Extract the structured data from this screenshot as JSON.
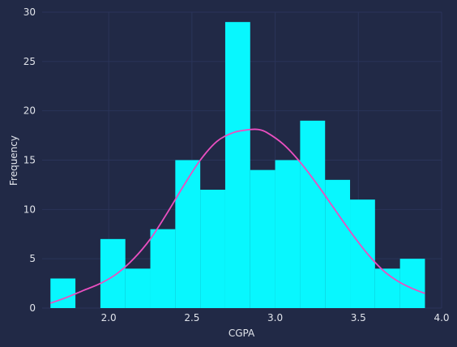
{
  "chart_data": {
    "type": "bar",
    "subtype": "histogram",
    "xlabel": "CGPA",
    "ylabel": "Frequency",
    "xlim": [
      1.6,
      4.0
    ],
    "ylim": [
      0,
      30
    ],
    "grid": true,
    "x_ticks": [
      "2.0",
      "2.5",
      "3.0",
      "3.5",
      "4.0"
    ],
    "x_tick_values": [
      2.0,
      2.5,
      3.0,
      3.5,
      4.0
    ],
    "y_ticks": [
      "0",
      "5",
      "10",
      "15",
      "20",
      "25",
      "30"
    ],
    "y_tick_values": [
      0,
      5,
      10,
      15,
      20,
      25,
      30
    ],
    "bins": [
      {
        "x0": 1.65,
        "x1": 1.8,
        "value": 3
      },
      {
        "x0": 1.8,
        "x1": 1.95,
        "value": 0
      },
      {
        "x0": 1.95,
        "x1": 2.1,
        "value": 7
      },
      {
        "x0": 2.1,
        "x1": 2.25,
        "value": 4
      },
      {
        "x0": 2.25,
        "x1": 2.4,
        "value": 8
      },
      {
        "x0": 2.4,
        "x1": 2.55,
        "value": 15
      },
      {
        "x0": 2.55,
        "x1": 2.7,
        "value": 12
      },
      {
        "x0": 2.7,
        "x1": 2.85,
        "value": 29
      },
      {
        "x0": 2.85,
        "x1": 3.0,
        "value": 14
      },
      {
        "x0": 3.0,
        "x1": 3.15,
        "value": 15
      },
      {
        "x0": 3.15,
        "x1": 3.3,
        "value": 19
      },
      {
        "x0": 3.3,
        "x1": 3.45,
        "value": 13
      },
      {
        "x0": 3.45,
        "x1": 3.6,
        "value": 11
      },
      {
        "x0": 3.6,
        "x1": 3.75,
        "value": 4
      },
      {
        "x0": 3.75,
        "x1": 3.9,
        "value": 5
      }
    ],
    "kde_curve": {
      "x": [
        1.65,
        1.75,
        1.85,
        1.95,
        2.05,
        2.15,
        2.25,
        2.35,
        2.45,
        2.55,
        2.65,
        2.75,
        2.85,
        2.9,
        2.95,
        3.05,
        3.15,
        3.25,
        3.35,
        3.45,
        3.55,
        3.65,
        3.75,
        3.85,
        3.9
      ],
      "y": [
        0.5,
        1.1,
        1.8,
        2.5,
        3.5,
        5.0,
        7.0,
        9.6,
        12.4,
        15.0,
        16.9,
        17.8,
        18.1,
        18.1,
        17.8,
        16.6,
        14.8,
        12.6,
        10.2,
        7.8,
        5.6,
        3.8,
        2.6,
        1.8,
        1.5
      ]
    }
  },
  "colors": {
    "background": "#212946",
    "bar": "#08f7fe",
    "kde": "#ea4fc0",
    "grid": "#2a3459",
    "text": "#e0e3ea"
  }
}
